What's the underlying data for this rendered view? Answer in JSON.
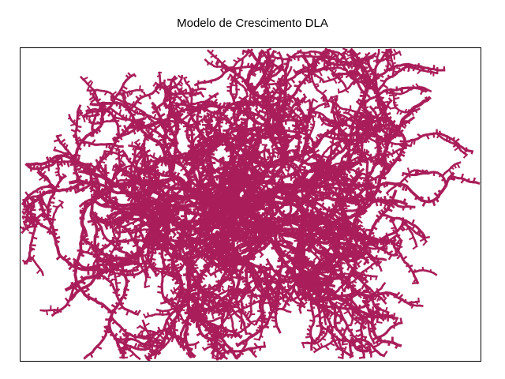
{
  "figure": {
    "title": "Modelo de Crescimento DLA"
  },
  "aggregate": {
    "particle_color": "#A91E5A",
    "background_color": "#FFFFFF",
    "frame_color": "#000000",
    "axes_visible": false
  }
}
